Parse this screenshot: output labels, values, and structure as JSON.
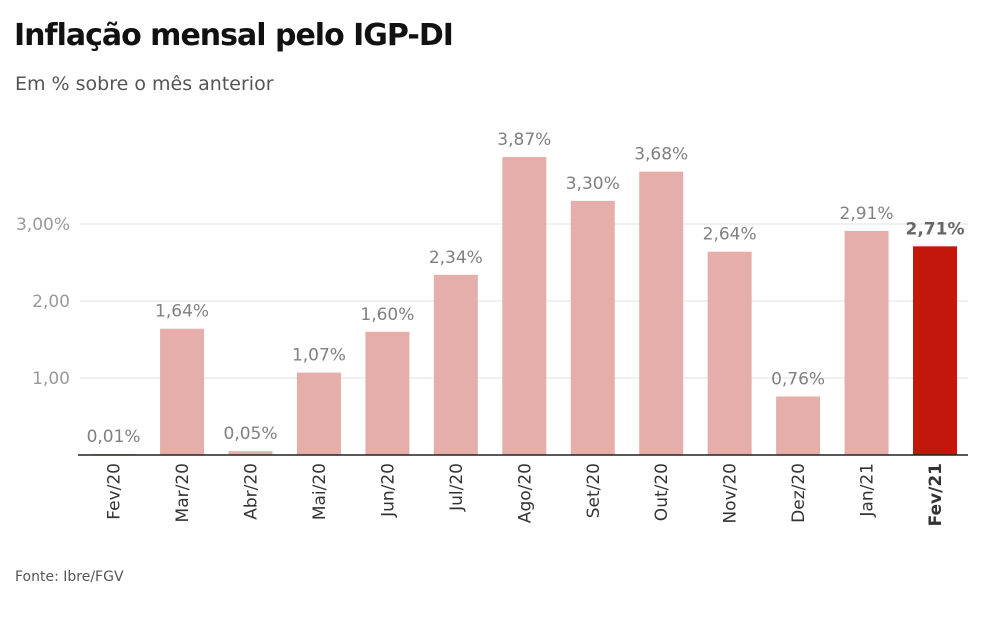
{
  "title": "Inflação mensal pelo IGP-DI",
  "subtitle": "Em % sobre o mês anterior",
  "source": "Fonte: Ibre/FGV",
  "chart_data": {
    "type": "bar",
    "title": "Inflação mensal pelo IGP-DI",
    "subtitle": "Em % sobre o mês anterior",
    "categories": [
      "Fev/20",
      "Mar/20",
      "Abr/20",
      "Mai/20",
      "Jun/20",
      "Jul/20",
      "Ago/20",
      "Set/20",
      "Out/20",
      "Nov/20",
      "Dez/20",
      "Jan/21",
      "Fev/21"
    ],
    "values": [
      0.01,
      1.64,
      0.05,
      1.07,
      1.6,
      2.34,
      3.87,
      3.3,
      3.68,
      2.64,
      0.76,
      2.91,
      2.71
    ],
    "data_labels": [
      "0,01%",
      "1,64%",
      "0,05%",
      "1,07%",
      "1,60%",
      "2,34%",
      "3,87%",
      "3,30%",
      "3,68%",
      "2,64%",
      "0,76%",
      "2,91%",
      "2,71%"
    ],
    "highlight_index": 12,
    "y_ticks": [
      1,
      2,
      3
    ],
    "y_tick_labels": [
      "1,00",
      "2,00",
      "3,00%"
    ],
    "ylim": [
      0,
      4
    ],
    "grid": true,
    "colors": {
      "bar": "#e6aeaa",
      "highlight": "#c4170c",
      "grid": "#e6e6e6",
      "axis": "#222222"
    }
  }
}
